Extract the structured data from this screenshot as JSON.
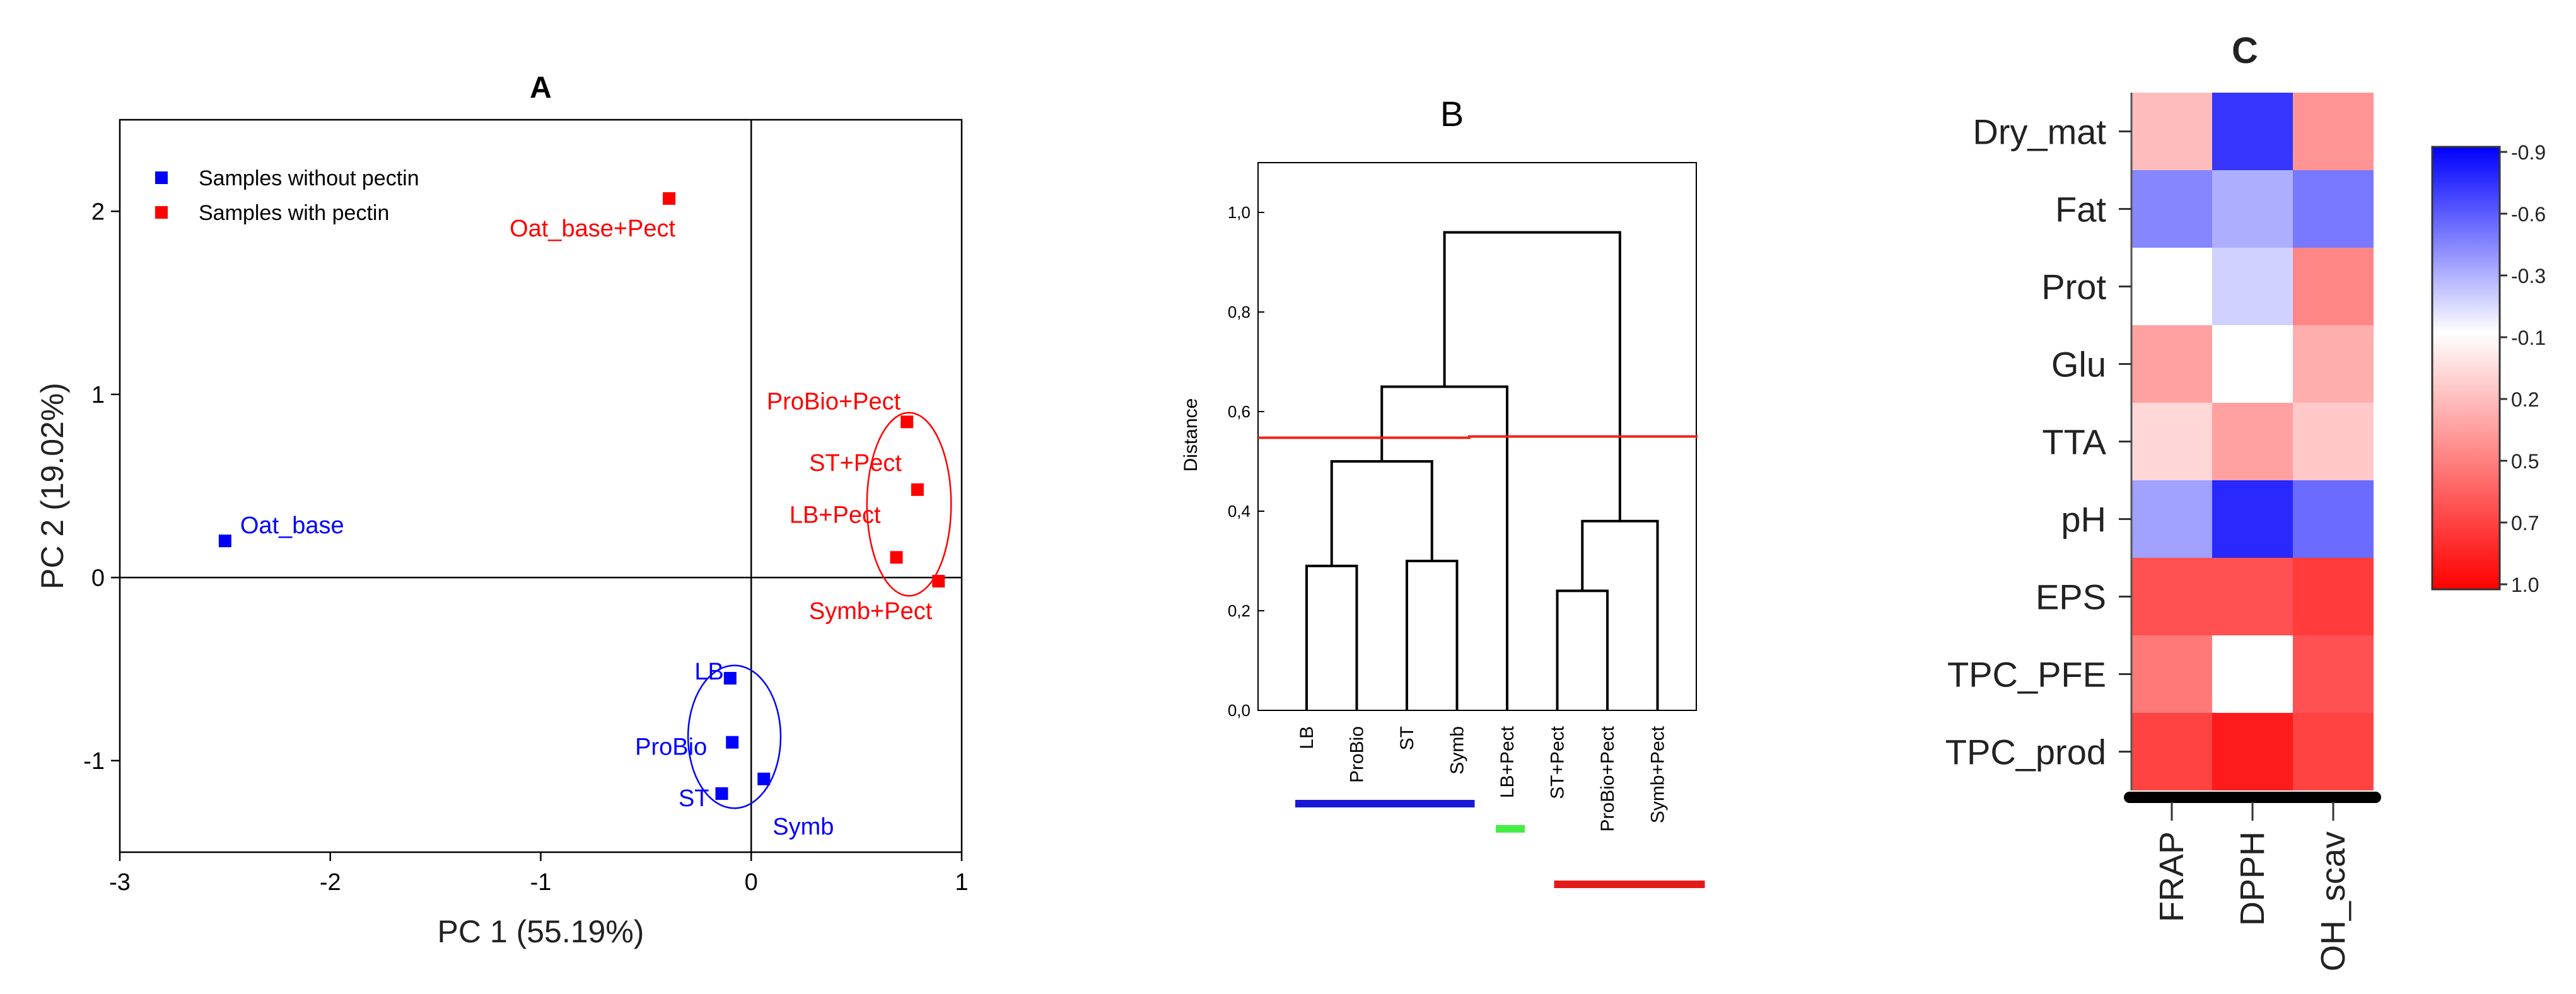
{
  "chart_data": [
    {
      "type": "scatter",
      "panel": "A",
      "title": "A",
      "xlabel": "PC 1 (55.19%)",
      "ylabel": "PC 2 (19.02%)",
      "xlim": [
        -3,
        1
      ],
      "ylim": [
        -1.5,
        2.5
      ],
      "xticks": [
        -3,
        -2,
        -1,
        0,
        1
      ],
      "yticks": [
        -1,
        0,
        1,
        2
      ],
      "grid": false,
      "legend_position": "top-left",
      "series": [
        {
          "name": "Samples without pectin",
          "color": "#0000ff",
          "points": [
            {
              "label": "Oat_base",
              "x": -2.5,
              "y": 0.2
            },
            {
              "label": "LB",
              "x": -0.1,
              "y": -0.55
            },
            {
              "label": "ProBio",
              "x": -0.09,
              "y": -0.9
            },
            {
              "label": "ST",
              "x": -0.14,
              "y": -1.18
            },
            {
              "label": "Symb",
              "x": 0.06,
              "y": -1.1
            }
          ]
        },
        {
          "name": "Samples with pectin",
          "color": "#ff0000",
          "points": [
            {
              "label": "Oat_base+Pect",
              "x": -0.39,
              "y": 2.07
            },
            {
              "label": "ProBio+Pect",
              "x": 0.74,
              "y": 0.85
            },
            {
              "label": "ST+Pect",
              "x": 0.79,
              "y": 0.48
            },
            {
              "label": "LB+Pect",
              "x": 0.69,
              "y": 0.11
            },
            {
              "label": "Symb+Pect",
              "x": 0.89,
              "y": -0.02
            }
          ]
        }
      ],
      "ellipses": [
        {
          "group": "Samples without pectin",
          "color": "#0000ff",
          "cx": -0.08,
          "cy": -0.87,
          "rx": 0.22,
          "ry": 0.39
        },
        {
          "group": "Samples with pectin",
          "color": "#ff0000",
          "cx": 0.75,
          "cy": 0.4,
          "rx": 0.2,
          "ry": 0.5
        }
      ]
    },
    {
      "type": "dendrogram",
      "panel": "B",
      "title": "B",
      "ylabel": "Distance",
      "ylim": [
        0,
        1.1
      ],
      "yticks": [
        "0,0",
        "0,2",
        "0,4",
        "0,6",
        "0,8",
        "1,0"
      ],
      "ytick_values": [
        0,
        0.2,
        0.4,
        0.6,
        0.8,
        1.0
      ],
      "leaves": [
        "LB",
        "ProBio",
        "ST",
        "Symb",
        "LB+Pect",
        "ST+Pect",
        "ProBio+Pect",
        "Symb+Pect"
      ],
      "merges": [
        {
          "left": [
            0
          ],
          "right": [
            1
          ],
          "height": 0.29
        },
        {
          "left": [
            2
          ],
          "right": [
            3
          ],
          "height": 0.3
        },
        {
          "left": [
            0,
            1
          ],
          "right": [
            2,
            3
          ],
          "height": 0.5
        },
        {
          "left": [
            0,
            1,
            2,
            3
          ],
          "right": [
            4
          ],
          "height": 0.65
        },
        {
          "left": [
            5
          ],
          "right": [
            6
          ],
          "height": 0.24
        },
        {
          "left": [
            5,
            6
          ],
          "right": [
            7
          ],
          "height": 0.38
        },
        {
          "left": [
            0,
            1,
            2,
            3,
            4
          ],
          "right": [
            5,
            6,
            7
          ],
          "height": 0.96
        }
      ],
      "cut_line": {
        "value": 0.55,
        "color": "#e8261a"
      },
      "groups": [
        {
          "leaves": [
            0,
            1,
            2,
            3
          ],
          "color": "#1a1ad6"
        },
        {
          "leaves": [
            4
          ],
          "color": "#44ee44"
        },
        {
          "leaves": [
            5,
            6,
            7
          ],
          "color": "#e41a1a"
        }
      ]
    },
    {
      "type": "heatmap",
      "panel": "C",
      "title": "C",
      "rows": [
        "Dry_mat",
        "Fat",
        "Prot",
        "Glu",
        "TTA",
        "pH",
        "EPS",
        "TPC_PFE",
        "TPC_prod"
      ],
      "columns": [
        "FRAP",
        "DPPH",
        "OH_scav"
      ],
      "values": [
        [
          0.3,
          -0.7,
          0.45
        ],
        [
          -0.4,
          -0.25,
          -0.45
        ],
        [
          0.05,
          -0.12,
          0.5
        ],
        [
          0.4,
          0.05,
          0.35
        ],
        [
          0.2,
          0.4,
          0.25
        ],
        [
          -0.3,
          -0.75,
          -0.5
        ],
        [
          0.7,
          0.7,
          0.78
        ],
        [
          0.55,
          0.05,
          0.7
        ],
        [
          0.75,
          0.9,
          0.75
        ]
      ],
      "colorbar": {
        "labels": [
          "-0.9",
          "-0.6",
          "-0.3",
          "-0.1",
          "0.2",
          "0.5",
          "0.7",
          "1.0"
        ],
        "values": [
          -0.9,
          -0.6,
          -0.3,
          -0.1,
          0.2,
          0.5,
          0.7,
          1.0
        ],
        "range": [
          -0.9,
          1.0
        ],
        "colors": [
          "#0000ff",
          "#ffffff",
          "#ff0000"
        ]
      }
    }
  ]
}
